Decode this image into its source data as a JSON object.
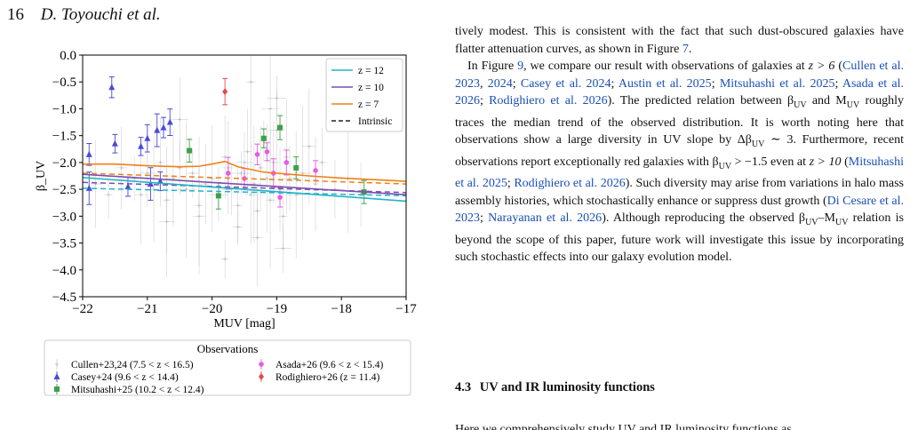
{
  "header": {
    "page_number": "16",
    "authors": "D. Toyouchi et al."
  },
  "chart_data": {
    "type": "scatter",
    "title": "",
    "xlabel": "M_UV [mag]",
    "ylabel": "β_UV",
    "xlim": [
      -22,
      -17
    ],
    "ylim": [
      -4.5,
      0.0
    ],
    "xticks": [
      -22,
      -21,
      -20,
      -19,
      -18,
      -17
    ],
    "xtick_labels": [
      "−22",
      "−21",
      "−20",
      "−19",
      "−18",
      "−17"
    ],
    "yticks": [
      0.0,
      -0.5,
      -1.0,
      -1.5,
      -2.0,
      -2.5,
      -3.0,
      -3.5,
      -4.0,
      -4.5
    ],
    "ytick_labels": [
      "0.0",
      "−0.5",
      "−1.0",
      "−1.5",
      "−2.0",
      "−2.5",
      "−3.0",
      "−3.5",
      "−4.0",
      "−4.5"
    ],
    "lines_legend_placement": "top-right",
    "lines": [
      {
        "name": "z = 12",
        "color": "#1fb4c9",
        "style": "solid",
        "x": [
          -22,
          -17
        ],
        "y": [
          -2.28,
          -2.72
        ]
      },
      {
        "name": "z = 10",
        "color": "#7a4fb0",
        "style": "solid",
        "x": [
          -22,
          -17
        ],
        "y": [
          -2.22,
          -2.6
        ]
      },
      {
        "name": "z = 7",
        "color": "#f07f1a",
        "style": "solid",
        "x": [
          -22,
          -21.5,
          -21,
          -20.5,
          -20.2,
          -20,
          -19.8,
          -19.6,
          -19.4,
          -19.2,
          -19,
          -18.5,
          -18,
          -17.5,
          -17
        ],
        "y": [
          -2.03,
          -2.03,
          -2.06,
          -2.08,
          -2.07,
          -2.03,
          -1.98,
          -2.08,
          -2.13,
          -2.18,
          -2.2,
          -2.25,
          -2.29,
          -2.32,
          -2.35
        ]
      }
    ],
    "dashed_lines": [
      {
        "color": "#f07f1a",
        "x": [
          -22,
          -17
        ],
        "y": [
          -2.2,
          -2.4
        ]
      },
      {
        "color": "#7a4fb0",
        "x": [
          -22,
          -17
        ],
        "y": [
          -2.37,
          -2.56
        ]
      },
      {
        "color": "#1fb4c9",
        "x": [
          -22,
          -17
        ],
        "y": [
          -2.48,
          -2.62
        ]
      }
    ],
    "intrinsic_label": "Intrinsic",
    "series": [
      {
        "name": "Cullen+23,24 (7.5 < z < 16.5)",
        "color": "#b8b8b8",
        "marker": "plus",
        "x": [
          -21.8,
          -21.6,
          -21.4,
          -21.2,
          -21.1,
          -21.0,
          -20.9,
          -20.8,
          -20.7,
          -20.6,
          -20.5,
          -20.4,
          -20.3,
          -20.2,
          -20.1,
          -20.0,
          -19.9,
          -19.8,
          -19.75,
          -19.7,
          -19.6,
          -19.55,
          -19.5,
          -19.45,
          -19.4,
          -19.35,
          -19.3,
          -19.25,
          -19.2,
          -19.15,
          -19.1,
          -19.05,
          -19.0,
          -18.95,
          -18.9,
          -18.85,
          -18.8,
          -18.7,
          -18.6,
          -18.5,
          -18.4,
          -18.3,
          -18.1,
          -17.9,
          -17.7,
          -19.6,
          -19.3,
          -19.0,
          -20.5,
          -20.2,
          -18.9,
          -19.4,
          -19.8,
          -20.7,
          -19.1
        ],
        "y": [
          -2.4,
          -2.6,
          -2.1,
          -2.3,
          -2.6,
          -2.2,
          -2.5,
          -2.0,
          -2.7,
          -2.3,
          -2.1,
          -2.5,
          -2.2,
          -2.8,
          -2.4,
          -2.3,
          -2.6,
          -1.9,
          -2.1,
          -2.5,
          -2.8,
          -2.2,
          -2.0,
          -1.8,
          -2.6,
          -2.4,
          -2.9,
          -2.1,
          -1.6,
          -2.3,
          -2.7,
          -2.0,
          -1.4,
          -2.5,
          -3.0,
          -1.9,
          -2.3,
          -2.6,
          -2.2,
          -1.7,
          -2.4,
          -2.0,
          -2.5,
          -2.3,
          -2.6,
          -3.2,
          -3.4,
          -0.8,
          -1.2,
          -3.0,
          -3.6,
          -0.5,
          -3.8,
          -3.1,
          -1.0
        ]
      },
      {
        "name": "Casey+24 (9.6 < z < 14.4)",
        "color": "#4a4ad6",
        "marker": "triangle",
        "x": [
          -21.9,
          -21.9,
          -21.55,
          -21.5,
          -21.3,
          -21.1,
          -21.0,
          -20.95,
          -20.85,
          -20.75,
          -20.65,
          -20.8
        ],
        "y": [
          -1.85,
          -2.48,
          -0.6,
          -1.65,
          -2.45,
          -1.7,
          -1.55,
          -2.4,
          -1.4,
          -1.35,
          -1.25,
          -2.35
        ]
      },
      {
        "name": "Mitsuhashi+25 (10.2 < z < 12.4)",
        "color": "#3fa04a",
        "marker": "square",
        "x": [
          -20.35,
          -19.9,
          -19.2,
          -18.95,
          -18.7,
          -17.65
        ],
        "y": [
          -1.78,
          -2.62,
          -1.55,
          -1.35,
          -2.1,
          -2.55
        ]
      },
      {
        "name": "Asada+26 (9.6 < z < 15.4)",
        "color": "#e45ce4",
        "marker": "circle",
        "x": [
          -19.75,
          -19.5,
          -19.3,
          -19.15,
          -19.05,
          -18.95,
          -18.85,
          -18.4
        ],
        "y": [
          -2.2,
          -2.3,
          -1.85,
          -1.8,
          -2.2,
          -2.65,
          -2.0,
          -2.15
        ]
      },
      {
        "name": "Rodighiero+26 (z = 11.4)",
        "color": "#e34a4a",
        "marker": "diamond",
        "x": [
          -19.8
        ],
        "y": [
          -0.68
        ]
      }
    ],
    "obs_legend_title": "Observations"
  },
  "text": {
    "p1": [
      {
        "t": "tively modest. This is consistent with the fact that such dust-obscured galaxies have flatter attenuation curves, as shown in Figure "
      },
      {
        "t": "7",
        "c": true
      },
      {
        "t": "."
      }
    ],
    "p2": [
      {
        "t": "In Figure "
      },
      {
        "t": "9",
        "c": true
      },
      {
        "t": ", we compare our result with observations of galaxies at "
      },
      {
        "t": "z > 6",
        "i": true
      },
      {
        "t": " ("
      },
      {
        "t": "Cullen et al. 2023",
        "c": true
      },
      {
        "t": ", "
      },
      {
        "t": "2024",
        "c": true
      },
      {
        "t": "; "
      },
      {
        "t": "Casey et al. 2024",
        "c": true
      },
      {
        "t": "; "
      },
      {
        "t": "Austin et al. 2025",
        "c": true
      },
      {
        "t": "; "
      },
      {
        "t": "Mitsuhashi et al. 2025",
        "c": true
      },
      {
        "t": "; "
      },
      {
        "t": "Asada et al. 2026",
        "c": true
      },
      {
        "t": "; "
      },
      {
        "t": "Rodighiero et al. 2026",
        "c": true
      },
      {
        "t": "). The predicted relation between β"
      },
      {
        "t": "UV",
        "sub": true
      },
      {
        "t": " and M"
      },
      {
        "t": "UV",
        "sub": true
      },
      {
        "t": " roughly traces the median trend of the observed distribution. It is worth noting here that observations show a large diversity in UV slope by Δβ"
      },
      {
        "t": "UV",
        "sub": true
      },
      {
        "t": " ∼ 3. Furthermore, recent observations report exceptionally red galaxies with β"
      },
      {
        "t": "UV",
        "sub": true
      },
      {
        "t": " > −1.5 even at "
      },
      {
        "t": "z > 10",
        "i": true
      },
      {
        "t": " ("
      },
      {
        "t": "Mitsuhashi et al. 2025",
        "c": true
      },
      {
        "t": "; "
      },
      {
        "t": "Rodighiero et al. 2026",
        "c": true
      },
      {
        "t": "). Such diversity may arise from variations in halo mass assembly histories, which stochastically enhance or suppress dust growth ("
      },
      {
        "t": "Di Cesare et al. 2023",
        "c": true
      },
      {
        "t": "; "
      },
      {
        "t": "Narayanan et al. 2026",
        "c": true
      },
      {
        "t": "). Although reproducing the observed β"
      },
      {
        "t": "UV",
        "sub": true
      },
      {
        "t": "–M"
      },
      {
        "t": "UV",
        "sub": true
      },
      {
        "t": " relation is beyond the scope of this paper, future work will investigate this issue by incorporating such stochastic effects into our galaxy evolution model."
      }
    ],
    "section_number": "4.3",
    "section_title": "UV and IR luminosity functions",
    "cut_line": "Here we comprehensively study UV and IR luminosity functions as"
  }
}
